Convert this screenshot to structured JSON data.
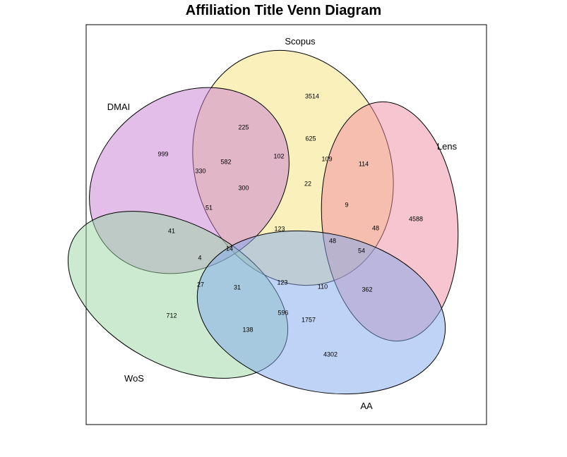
{
  "title": "Affiliation Title Venn Diagram",
  "sets": [
    {
      "name": "Scopus",
      "color": "#F5E27A"
    },
    {
      "name": "DMAI",
      "color": "#C77ED3"
    },
    {
      "name": "Lens",
      "color": "#F08CA0"
    },
    {
      "name": "WoS",
      "color": "#9AD5A1"
    },
    {
      "name": "AA",
      "color": "#7FA8EE"
    }
  ],
  "regions": [
    {
      "sets": [
        "Scopus"
      ],
      "count": "3514"
    },
    {
      "sets": [
        "DMAI"
      ],
      "count": "999"
    },
    {
      "sets": [
        "Lens"
      ],
      "count": "4588"
    },
    {
      "sets": [
        "WoS"
      ],
      "count": "712"
    },
    {
      "sets": [
        "AA"
      ],
      "count": "4302"
    },
    {
      "sets": [
        "DMAI",
        "Scopus"
      ],
      "count": "225"
    },
    {
      "sets": [
        "DMAI",
        "Scopus",
        "AA"
      ],
      "count": "582"
    },
    {
      "sets": [
        "DMAI",
        "AA"
      ],
      "count": "330"
    },
    {
      "sets": [
        "Scopus",
        "WoS"
      ],
      "count": "625"
    },
    {
      "sets": [
        "DMAI",
        "Scopus",
        "WoS"
      ],
      "count": "102"
    },
    {
      "sets": [
        "Scopus",
        "Lens",
        "WoS"
      ],
      "count": "109"
    },
    {
      "sets": [
        "Scopus",
        "Lens"
      ],
      "count": "114"
    },
    {
      "sets": [
        "DMAI",
        "Scopus",
        "WoS",
        "AA"
      ],
      "count": "300"
    },
    {
      "sets": [
        "Scopus",
        "Lens",
        "WoS",
        "DMAI"
      ],
      "count": "22"
    },
    {
      "sets": [
        "Scopus",
        "Lens",
        "DMAI"
      ],
      "count": "9"
    },
    {
      "sets": [
        "Lens",
        "DMAI"
      ],
      "count": "48"
    },
    {
      "sets": [
        "DMAI",
        "AA",
        "WoS"
      ],
      "count": "51"
    },
    {
      "sets": [
        "DMAI",
        "WoS"
      ],
      "count": "41"
    },
    {
      "sets": [
        "all"
      ],
      "count": "123"
    },
    {
      "sets": [
        "Lens",
        "AA",
        "DMAI",
        "Scopus"
      ],
      "count": "48"
    },
    {
      "sets": [
        "Lens",
        "AA",
        "DMAI"
      ],
      "count": "54"
    },
    {
      "sets": [
        "DMAI",
        "WoS",
        "Lens"
      ],
      "count": "4"
    },
    {
      "sets": [
        "DMAI",
        "WoS",
        "AA",
        "Lens"
      ],
      "count": "14"
    },
    {
      "sets": [
        "WoS",
        "Lens"
      ],
      "count": "27"
    },
    {
      "sets": [
        "WoS",
        "AA",
        "Lens"
      ],
      "count": "31"
    },
    {
      "sets": [
        "WoS",
        "AA",
        "Lens",
        "Scopus"
      ],
      "count": "123"
    },
    {
      "sets": [
        "Lens",
        "AA",
        "Scopus"
      ],
      "count": "110"
    },
    {
      "sets": [
        "Lens",
        "AA"
      ],
      "count": "362"
    },
    {
      "sets": [
        "WoS",
        "AA"
      ],
      "count": "138"
    },
    {
      "sets": [
        "WoS",
        "AA",
        "Scopus"
      ],
      "count": "596"
    },
    {
      "sets": [
        "AA",
        "Scopus"
      ],
      "count": "1757"
    }
  ]
}
